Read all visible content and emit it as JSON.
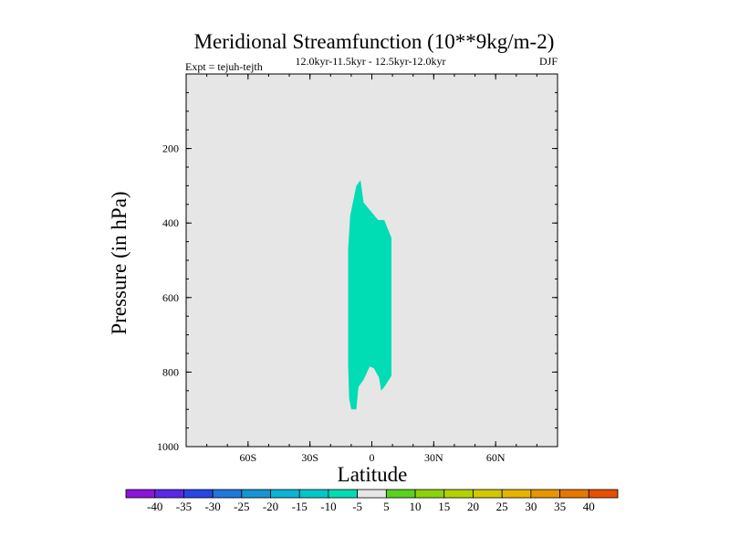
{
  "chart_data": {
    "type": "contour",
    "title": "Meridional Streamfunction (10**9kg/m-2)",
    "subtitle_left": "Expt = tejuh-tejth",
    "subtitle_center": "12.0kyr-11.5kyr - 12.5kyr-12.0kyr",
    "subtitle_right": "DJF",
    "xlabel": "Latitude",
    "ylabel": "Pressure (in hPa)",
    "xlim": [
      -90,
      90
    ],
    "ylim": [
      1000,
      0
    ],
    "x_ticks": [
      {
        "value": -60,
        "label": "60S"
      },
      {
        "value": -30,
        "label": "30S"
      },
      {
        "value": 0,
        "label": "0"
      },
      {
        "value": 30,
        "label": "30N"
      },
      {
        "value": 60,
        "label": "60N"
      }
    ],
    "y_ticks": [
      {
        "value": 200,
        "label": "200"
      },
      {
        "value": 400,
        "label": "400"
      },
      {
        "value": 600,
        "label": "600"
      },
      {
        "value": 800,
        "label": "800"
      },
      {
        "value": 1000,
        "label": "1000"
      }
    ],
    "background_level": {
      "range": [
        -5,
        5
      ],
      "color": "#e6e6e6"
    },
    "filled_regions": [
      {
        "level_range": [
          -10,
          -5
        ],
        "color": "#00dcb4",
        "outline": [
          [
            -7.5,
            300
          ],
          [
            -5.5,
            285
          ],
          [
            -4,
            345
          ],
          [
            3,
            392
          ],
          [
            6,
            392
          ],
          [
            9.5,
            440
          ],
          [
            9.5,
            810
          ],
          [
            6,
            840
          ],
          [
            4.5,
            850
          ],
          [
            3.5,
            815
          ],
          [
            1,
            790
          ],
          [
            -1,
            785
          ],
          [
            -4,
            820
          ],
          [
            -6.5,
            840
          ],
          [
            -7.5,
            900
          ],
          [
            -10,
            900
          ],
          [
            -11,
            870
          ],
          [
            -11.5,
            780
          ],
          [
            -11.5,
            470
          ],
          [
            -10.5,
            380
          ]
        ]
      }
    ],
    "colorbar": {
      "labels": [
        "-40",
        "-35",
        "-30",
        "-25",
        "-20",
        "-15",
        "-10",
        "-5",
        "5",
        "10",
        "15",
        "20",
        "25",
        "30",
        "35",
        "40"
      ],
      "colors": [
        "#8c14dc",
        "#5a28e6",
        "#2846e6",
        "#1e78dc",
        "#1496d2",
        "#0ab4d2",
        "#00c8c8",
        "#00dcb4",
        "#e6e6e6",
        "#5ad21e",
        "#8cd20a",
        "#b4d200",
        "#d2c800",
        "#e6b400",
        "#e69600",
        "#e67800",
        "#e65000"
      ]
    }
  }
}
